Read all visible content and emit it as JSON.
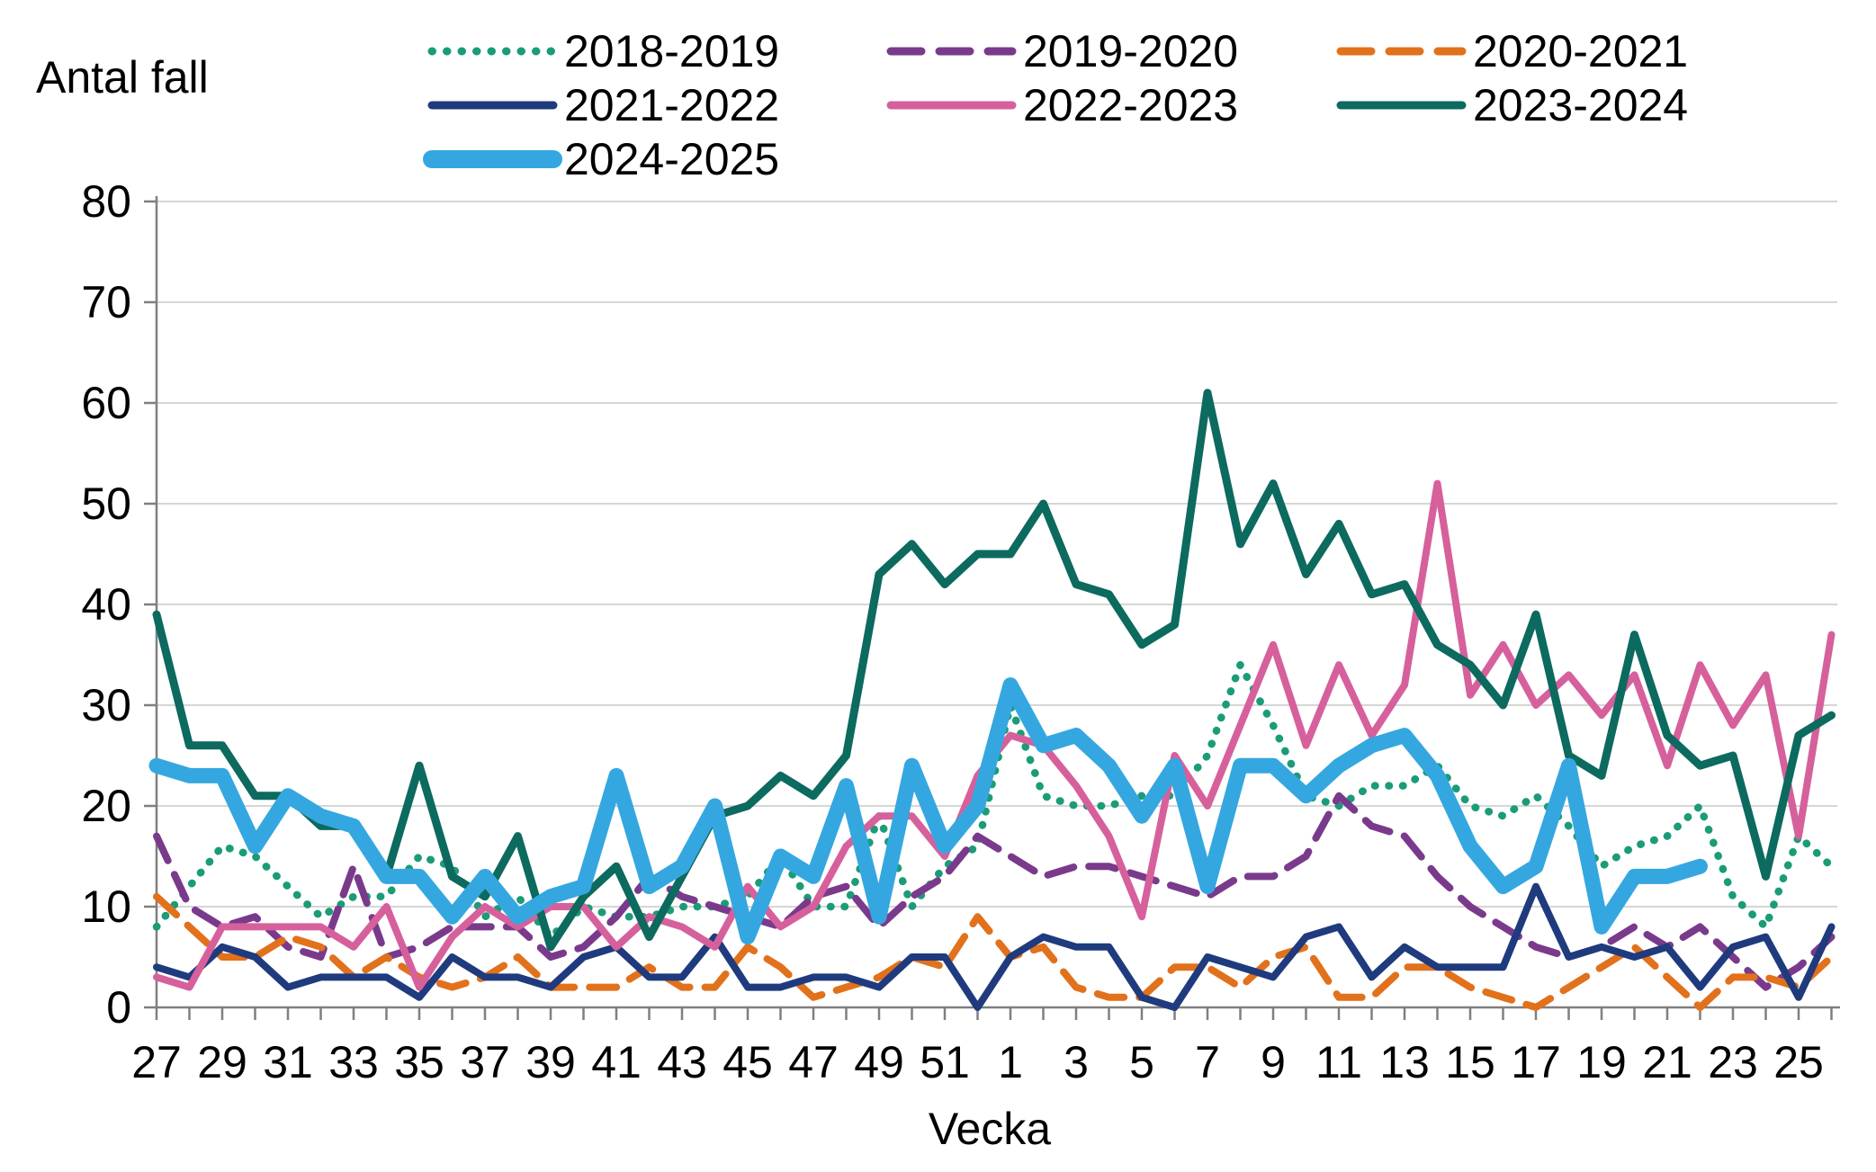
{
  "title": {
    "y_axis": "Antal fall",
    "x_axis": "Vecka"
  },
  "chart_data": {
    "type": "line",
    "x_axis_title": "Vecka",
    "y_axis_title": "Antal fall",
    "ylim": [
      0,
      80
    ],
    "y_ticks": [
      0,
      10,
      20,
      30,
      40,
      50,
      60,
      70,
      80
    ],
    "grid": "horizontal",
    "grid_color": "#D6D6D6",
    "axis_color": "#7F7F7F",
    "legend_position": "top",
    "weeks_order_note": "weeks run 27..52 then 1..26",
    "x_tick_labels": [
      "27",
      "29",
      "31",
      "33",
      "35",
      "37",
      "39",
      "41",
      "43",
      "45",
      "47",
      "49",
      "51",
      "1",
      "3",
      "5",
      "7",
      "9",
      "11",
      "13",
      "15",
      "17",
      "19",
      "21",
      "23",
      "25"
    ],
    "series": [
      {
        "name": "2018-2019",
        "color": "#1A9C78",
        "style": "dotted",
        "width": 8.5,
        "values": [
          8,
          12,
          16,
          15,
          12,
          9,
          11,
          11,
          15,
          14,
          9,
          11,
          7,
          10,
          9,
          9,
          10,
          10,
          11,
          15,
          10,
          10,
          19,
          10,
          14,
          16,
          30,
          21,
          20,
          20,
          21,
          21,
          25,
          34,
          28,
          21,
          20,
          22,
          22,
          24,
          20,
          19,
          21,
          18,
          14,
          16,
          17,
          20,
          11,
          8,
          17,
          14
        ]
      },
      {
        "name": "2019-2020",
        "color": "#7A3A8C",
        "style": "dashed",
        "width": 8,
        "values": [
          17,
          10,
          8,
          9,
          6,
          5,
          14,
          5,
          6,
          8,
          8,
          8,
          5,
          6,
          9,
          13,
          11,
          10,
          9,
          8,
          11,
          12,
          8,
          11,
          13,
          17,
          15,
          13,
          14,
          14,
          13,
          12,
          11,
          13,
          13,
          15,
          21,
          18,
          17,
          13,
          10,
          8,
          6,
          5,
          6,
          8,
          6,
          8,
          5,
          2,
          4,
          7
        ]
      },
      {
        "name": "2020-2021",
        "color": "#E2711C",
        "style": "dashed",
        "width": 8,
        "values": [
          11,
          8,
          5,
          5,
          7,
          6,
          3,
          5,
          3,
          2,
          3,
          5,
          2,
          2,
          2,
          4,
          2,
          2,
          6,
          4,
          1,
          2,
          3,
          5,
          4,
          9,
          5,
          6,
          2,
          1,
          1,
          4,
          4,
          2,
          5,
          6,
          1,
          1,
          4,
          4,
          2,
          1,
          0,
          2,
          4,
          6,
          3,
          0,
          3,
          3,
          2,
          5
        ]
      },
      {
        "name": "2021-2022",
        "color": "#1F3B7E",
        "style": "solid",
        "width": 8,
        "values": [
          4,
          3,
          6,
          5,
          2,
          3,
          3,
          3,
          1,
          5,
          3,
          3,
          2,
          5,
          6,
          3,
          3,
          7,
          2,
          2,
          3,
          3,
          2,
          5,
          5,
          0,
          5,
          7,
          6,
          6,
          1,
          0,
          5,
          4,
          3,
          7,
          8,
          3,
          6,
          4,
          4,
          4,
          12,
          5,
          6,
          5,
          6,
          2,
          6,
          7,
          1,
          8
        ]
      },
      {
        "name": "2022-2023",
        "color": "#D6609C",
        "style": "solid",
        "width": 8,
        "values": [
          3,
          2,
          8,
          8,
          8,
          8,
          6,
          10,
          2,
          7,
          10,
          8,
          10,
          10,
          6,
          9,
          8,
          6,
          12,
          8,
          10,
          16,
          19,
          19,
          15,
          23,
          27,
          26,
          22,
          17,
          9,
          25,
          20,
          28,
          36,
          26,
          34,
          27,
          32,
          52,
          31,
          36,
          30,
          33,
          29,
          33,
          24,
          34,
          28,
          33,
          17,
          37
        ]
      },
      {
        "name": "2023-2024",
        "color": "#0C6A5F",
        "style": "solid",
        "width": 9,
        "values": [
          39,
          26,
          26,
          21,
          21,
          18,
          18,
          13,
          24,
          13,
          11,
          17,
          6,
          11,
          14,
          7,
          13,
          19,
          20,
          23,
          21,
          25,
          43,
          46,
          42,
          45,
          45,
          50,
          42,
          41,
          36,
          38,
          61,
          46,
          52,
          43,
          48,
          41,
          42,
          36,
          34,
          30,
          39,
          25,
          23,
          37,
          27,
          24,
          25,
          13,
          27,
          29
        ]
      },
      {
        "name": "2024-2025",
        "color": "#35A7E0",
        "style": "solid",
        "width": 17,
        "values": [
          24,
          23,
          23,
          16,
          21,
          19,
          18,
          13,
          13,
          9,
          13,
          9,
          11,
          12,
          23,
          12,
          14,
          20,
          7,
          15,
          13,
          22,
          9,
          24,
          16,
          20,
          32,
          26,
          27,
          24,
          19,
          24,
          12,
          24,
          24,
          21,
          24,
          26,
          27,
          23,
          16,
          12,
          14,
          24,
          8,
          13,
          13,
          14
        ]
      }
    ]
  }
}
